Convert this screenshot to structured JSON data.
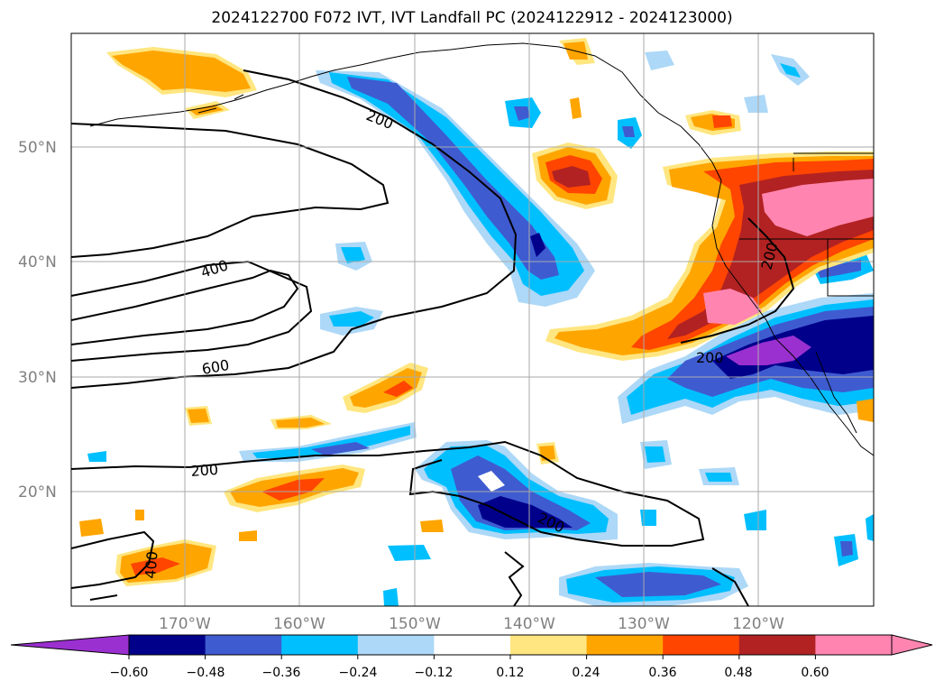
{
  "title": "2024122700 F072 IVT, IVT Landfall PC (2024122912 - 2024123000)",
  "map": {
    "lat_labels": [
      "50°N",
      "40°N",
      "30°N",
      "20°N"
    ],
    "lon_labels": [
      "170°W",
      "160°W",
      "150°W",
      "140°W",
      "130°W",
      "120°W"
    ],
    "grid": true,
    "contour_labels": [
      "200",
      "400",
      "600",
      "200",
      "200",
      "200",
      "400",
      "200"
    ]
  },
  "colorbar": {
    "tick_labels": [
      "−0.60",
      "−0.48",
      "−0.36",
      "−0.24",
      "−0.12",
      "0.12",
      "0.24",
      "0.36",
      "0.48",
      "0.60"
    ],
    "colors": [
      "#9b30d0",
      "#00008b",
      "#3f5bd0",
      "#00bfff",
      "#add8f7",
      "#ffffff",
      "#ffe680",
      "#ffa500",
      "#ff4500",
      "#b22222",
      "#ff85b0",
      "#ff85b0"
    ],
    "extend": "both"
  },
  "colors": {
    "neg_very_strong": "#9b30d0",
    "neg_strong": "#00008b",
    "neg_moderate": "#3f5bd0",
    "neg_weak": "#00bfff",
    "neg_faint": "#add8f7",
    "pos_faint": "#ffe680",
    "pos_weak": "#ffa500",
    "pos_moderate": "#ff4500",
    "pos_strong": "#b22222",
    "pos_very_strong": "#ff85b0"
  }
}
